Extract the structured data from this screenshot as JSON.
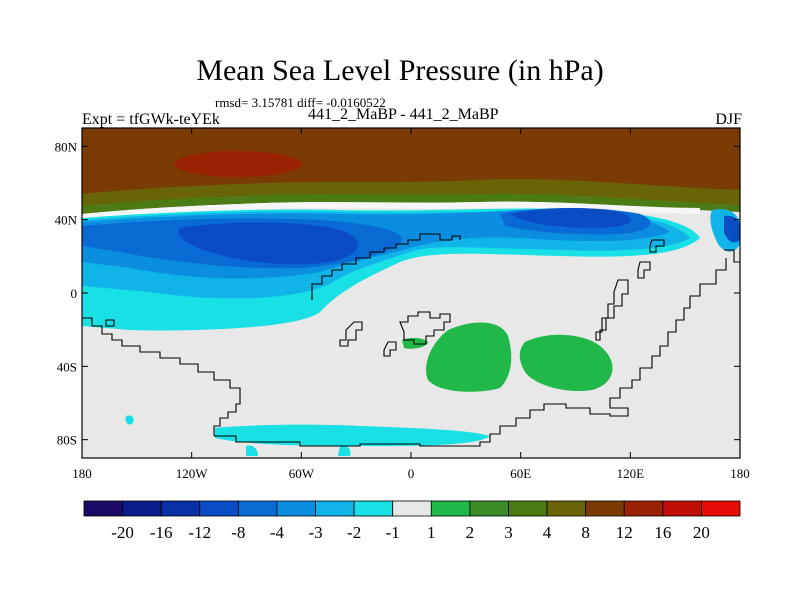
{
  "chart_data": {
    "type": "heatmap",
    "title": "Mean Sea Level Pressure (in hPa)",
    "stats_text": "rmsd= 3.15781 diff= -0.0160522",
    "left_label": "Expt = tfGWk-teYEk",
    "center_label": "441_2_MaBP - 441_2_MaBP",
    "right_label": "DJF",
    "x_ticks": [
      {
        "lon": -180,
        "label": "180"
      },
      {
        "lon": -120,
        "label": "120W"
      },
      {
        "lon": -60,
        "label": "60W"
      },
      {
        "lon": 0,
        "label": "0"
      },
      {
        "lon": 60,
        "label": "60E"
      },
      {
        "lon": 120,
        "label": "120E"
      },
      {
        "lon": 180,
        "label": "180"
      }
    ],
    "y_ticks": [
      {
        "lat": 80,
        "label": "80N"
      },
      {
        "lat": 40,
        "label": "40N"
      },
      {
        "lat": 0,
        "label": "0"
      },
      {
        "lat": -40,
        "label": "40S"
      },
      {
        "lat": -80,
        "label": "80S"
      }
    ],
    "xlim": [
      -180,
      180
    ],
    "ylim": [
      -90,
      90
    ],
    "colorbar": {
      "colors": [
        "#1a0a66",
        "#0b1c8c",
        "#0a30a8",
        "#0a4cc4",
        "#0a6ad4",
        "#0c8ee0",
        "#10b4e8",
        "#18e0e4",
        "#e8e8e8",
        "#20b848",
        "#3c8c28",
        "#4c7a14",
        "#6a6408",
        "#7a3c04",
        "#9a2204",
        "#c00e04",
        "#e80c04"
      ],
      "labels": [
        "-20",
        "-16",
        "-12",
        "-8",
        "-4",
        "-3",
        "-2",
        "-1",
        "1",
        "2",
        "3",
        "4",
        "8",
        "12",
        "16",
        "20"
      ]
    }
  }
}
